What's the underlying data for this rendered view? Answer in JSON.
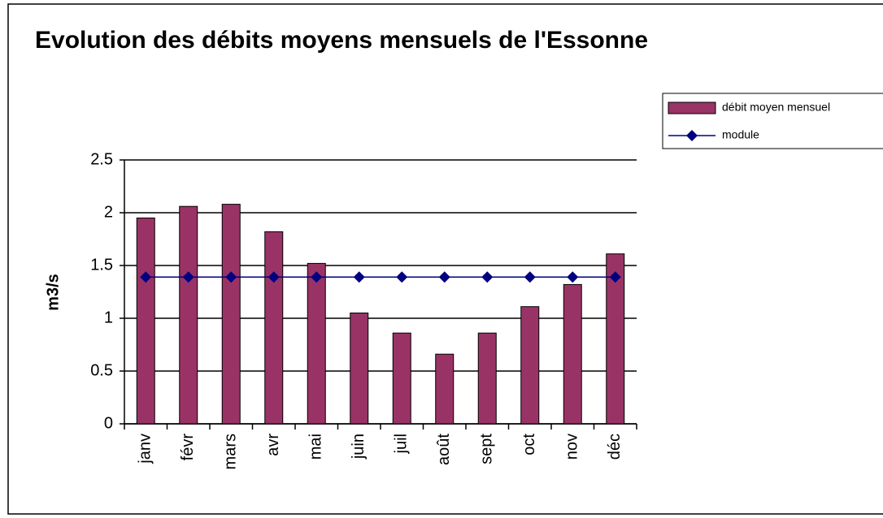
{
  "chart_data": {
    "type": "bar",
    "title": "Evolution des débits moyens mensuels de l'Essonne",
    "y_label": "m3/s",
    "categories": [
      "janv",
      "févr",
      "mars",
      "avr",
      "mai",
      "juin",
      "juil",
      "août",
      "sept",
      "oct",
      "nov",
      "déc"
    ],
    "series": [
      {
        "name": "débit moyen mensuel",
        "type": "bar",
        "color": "#993366",
        "values": [
          1.95,
          2.06,
          2.08,
          1.82,
          1.52,
          1.05,
          0.86,
          0.66,
          0.86,
          1.11,
          1.32,
          1.61
        ]
      },
      {
        "name": "module",
        "type": "line",
        "color": "#000080",
        "values": [
          1.39,
          1.39,
          1.39,
          1.39,
          1.39,
          1.39,
          1.39,
          1.39,
          1.39,
          1.39,
          1.39,
          1.39
        ]
      }
    ],
    "ylim": [
      0,
      2.5
    ],
    "yticks": [
      0,
      0.5,
      1,
      1.5,
      2,
      2.5
    ],
    "grid": true,
    "legend": "right"
  }
}
